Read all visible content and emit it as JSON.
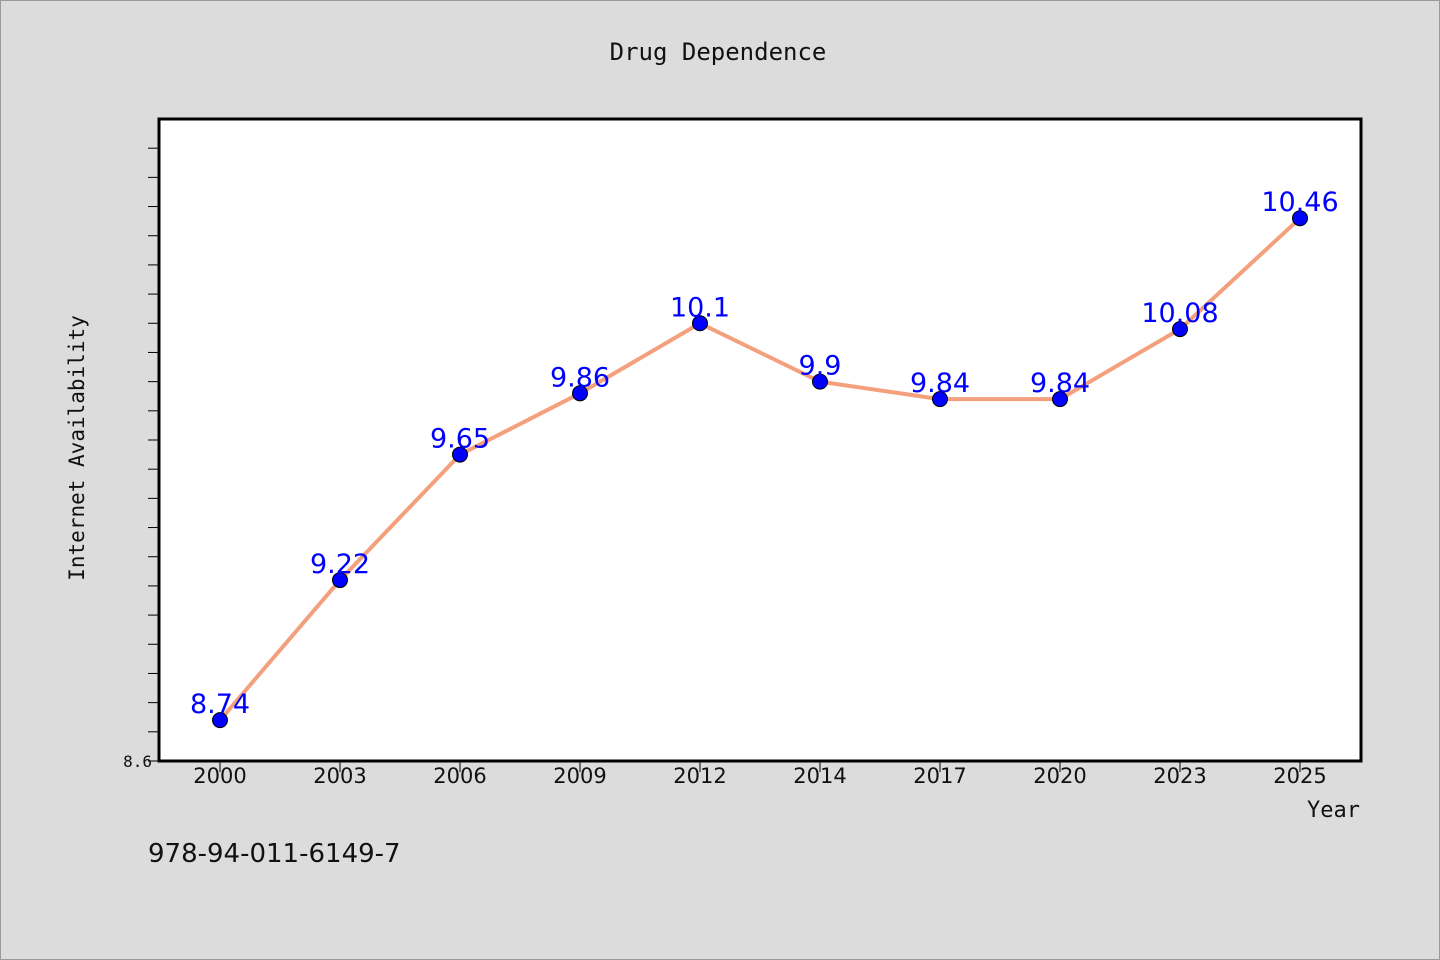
{
  "chart_data": {
    "type": "line",
    "title": "Drug Dependence",
    "xlabel": "Year",
    "ylabel": "Internet Availability",
    "categories": [
      "2000",
      "2003",
      "2006",
      "2009",
      "2012",
      "2014",
      "2017",
      "2020",
      "2023",
      "2025"
    ],
    "series": [
      {
        "values": [
          8.74,
          9.22,
          9.65,
          9.86,
          10.1,
          9.9,
          9.84,
          9.84,
          10.08,
          10.46
        ]
      }
    ],
    "y_tick_labels": [
      "8.6"
    ],
    "ylim": [
      8.6,
      10.8
    ],
    "grid": false,
    "line_color": "#f4a07c",
    "marker_color": "#0000ff",
    "label_color": "#0000ff"
  },
  "footer_text": "978-94-011-6149-7"
}
